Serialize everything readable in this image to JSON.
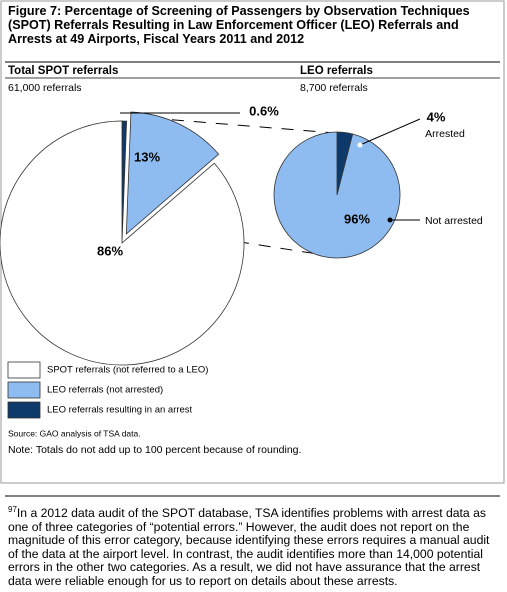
{
  "title": "Figure 7: Percentage of Screening of Passengers by Observation Techniques (SPOT) Referrals Resulting in Law Enforcement Officer (LEO) Referrals and Arrests at 49 Airports, Fiscal Years 2011 and 2012",
  "source": "Source: GAO analysis of TSA data.",
  "note": "Note: Totals do not add up to 100 percent because of rounding.",
  "footnote": {
    "number": "97",
    "text": "In a 2012 data audit of the SPOT database, TSA identifies problems with arrest data as one of three categories of “potential errors.” However, the audit does not report on the magnitude of this error category, because identifying these errors requires a manual audit of the data at the airport level. In contrast, the audit identifies more than 14,000 potential errors in the other two categories. As a result, we did not have assurance that the arrest data were reliable enough for us to report on details about these arrests."
  },
  "chart_data": [
    {
      "type": "pie",
      "title": "Total SPOT referrals",
      "subtitle": "61,000 referrals",
      "categories": [
        "LEO referrals resulting in an arrest",
        "LEO referrals (not arrested)",
        "SPOT referrals (not referred to a LEO)"
      ],
      "values": [
        0.6,
        13,
        86
      ],
      "value_labels": [
        "0.6%",
        "13%",
        "86%"
      ],
      "colors": [
        "#0d3a6b",
        "#8fbcf0",
        "#ffffff"
      ]
    },
    {
      "type": "pie",
      "title": "LEO referrals",
      "subtitle": "8,700 referrals",
      "categories": [
        "Arrested",
        "Not arrested"
      ],
      "values": [
        4,
        96
      ],
      "value_labels": [
        "4%",
        "96%"
      ],
      "colors": [
        "#0d3a6b",
        "#8fbcf0"
      ]
    }
  ]
}
